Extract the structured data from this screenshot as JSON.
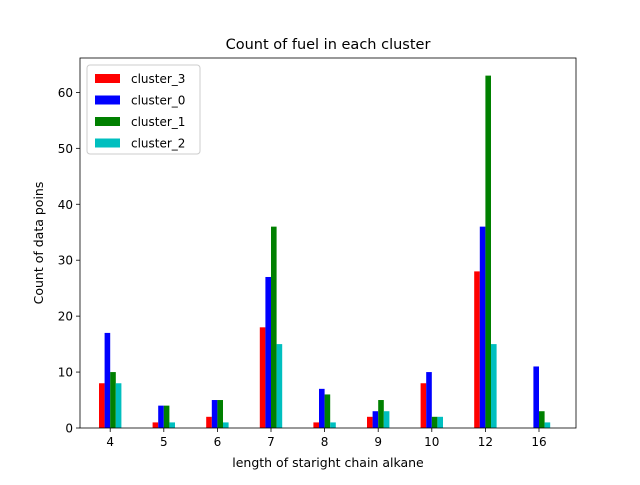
{
  "chart_data": {
    "type": "bar",
    "title": "Count of fuel in each cluster",
    "xlabel": "length of staright chain alkane",
    "ylabel": "Count of data poins",
    "categories": [
      "4",
      "5",
      "6",
      "7",
      "8",
      "9",
      "10",
      "12",
      "16"
    ],
    "ylim": [
      0,
      66.15
    ],
    "yticks": [
      0,
      10,
      20,
      30,
      40,
      50,
      60
    ],
    "grid": false,
    "legend_position": "top-left",
    "series": [
      {
        "name": "cluster_3",
        "color": "#ff0000",
        "values": [
          8,
          1,
          2,
          18,
          1,
          2,
          8,
          28,
          0
        ]
      },
      {
        "name": "cluster_0",
        "color": "#0000ff",
        "values": [
          17,
          4,
          5,
          27,
          7,
          3,
          10,
          36,
          11
        ]
      },
      {
        "name": "cluster_1",
        "color": "#008000",
        "values": [
          10,
          4,
          5,
          36,
          6,
          5,
          2,
          63,
          3
        ]
      },
      {
        "name": "cluster_2",
        "color": "#00bfbf",
        "values": [
          8,
          1,
          1,
          15,
          1,
          3,
          2,
          15,
          1
        ]
      }
    ]
  }
}
